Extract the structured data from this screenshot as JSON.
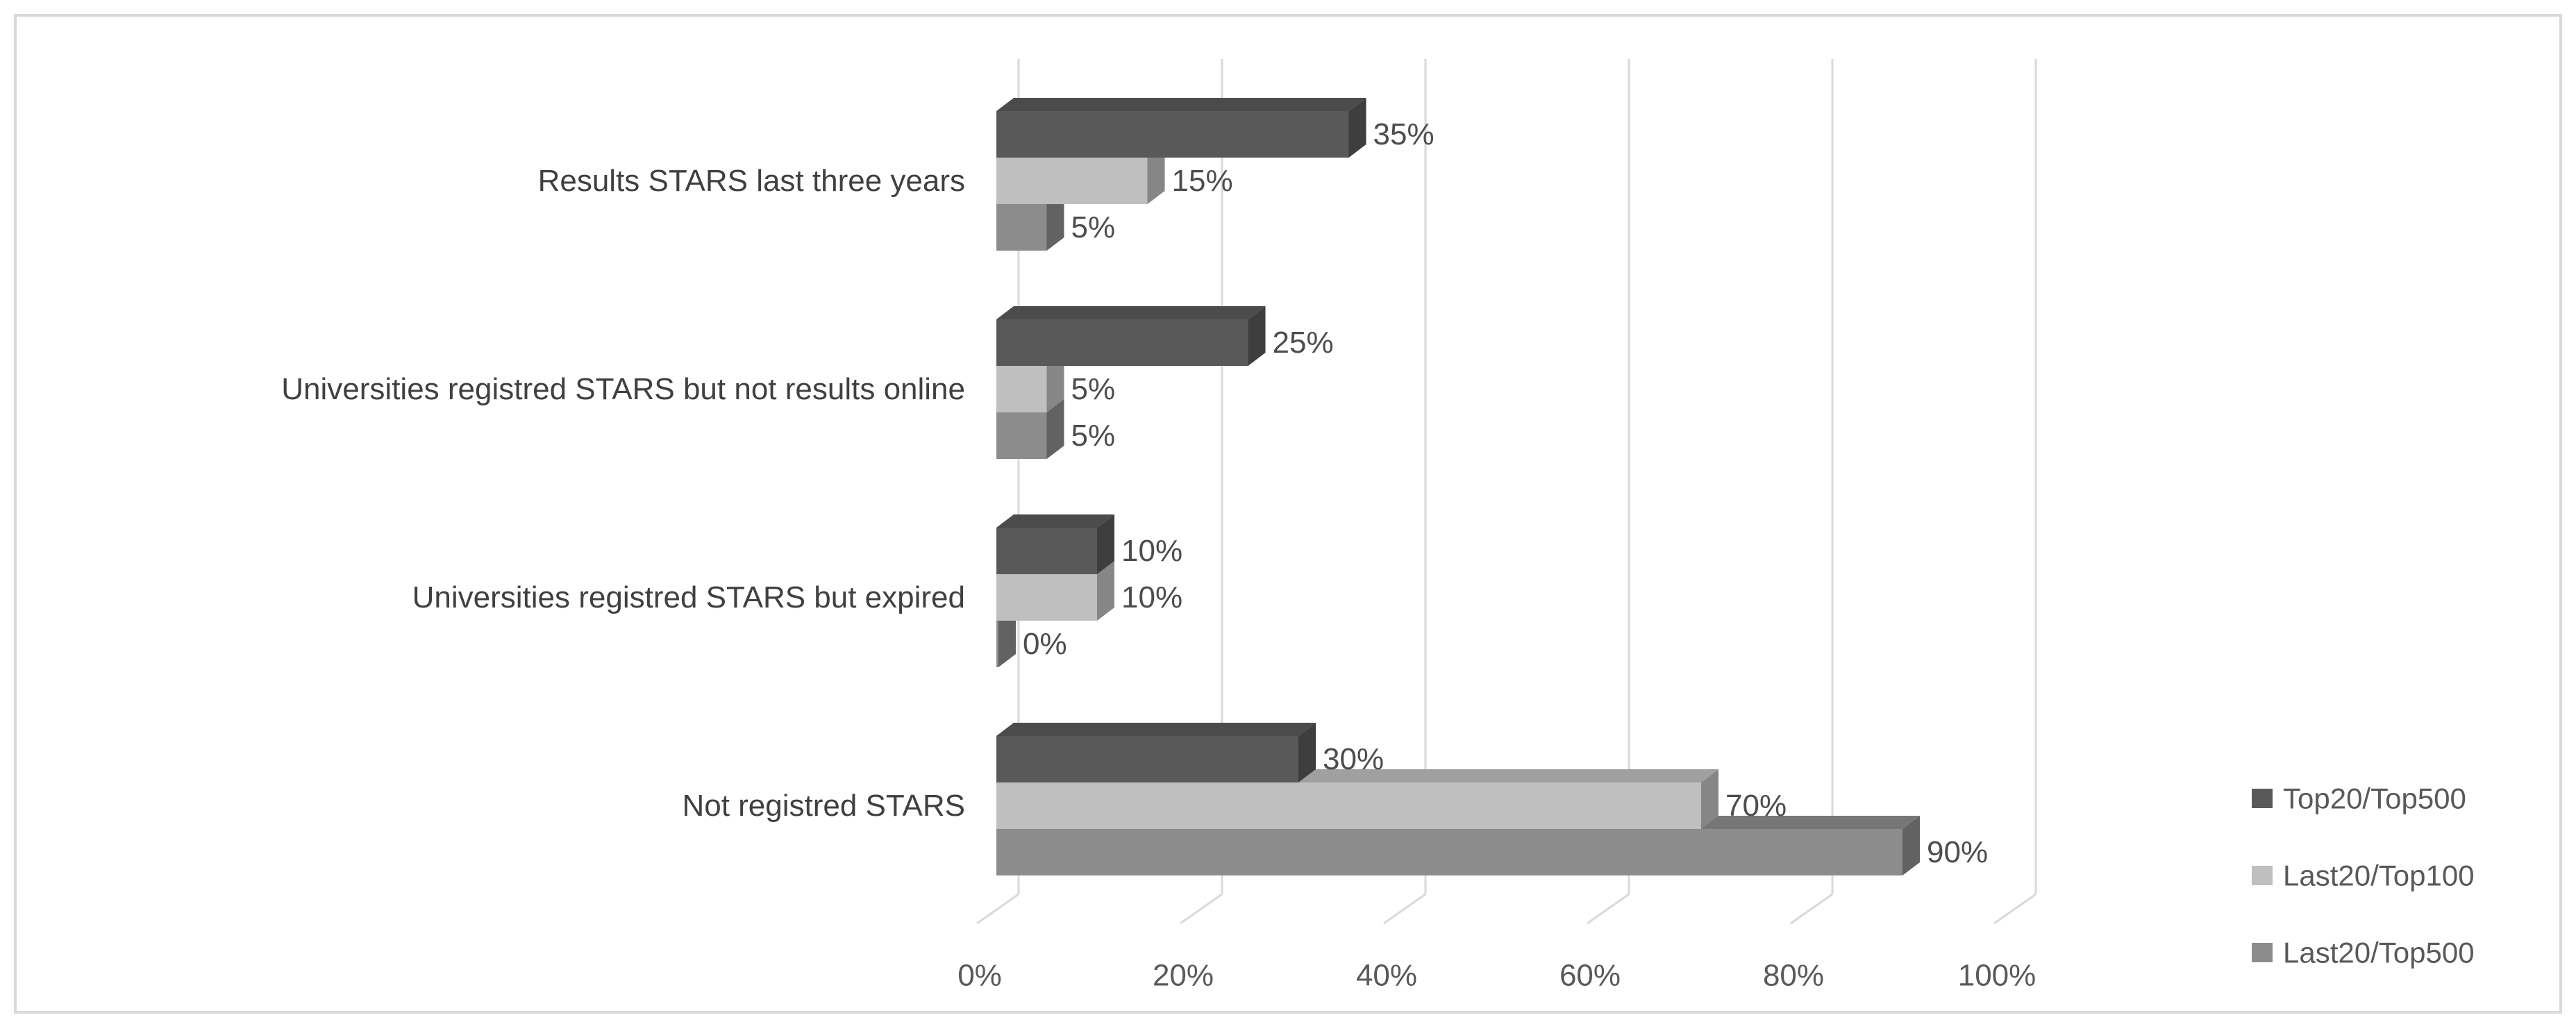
{
  "chart_data": {
    "type": "bar",
    "orientation": "horizontal",
    "style": "3d",
    "title": "",
    "xlabel": "",
    "ylabel": "",
    "categories": [
      "Results STARS last three years",
      "Universities registred STARS but not results online",
      "Universities registred STARS but expired",
      "Not registred STARS"
    ],
    "series": [
      {
        "name": "Top20/Top500",
        "color": "#595959",
        "values": [
          35,
          25,
          10,
          30
        ],
        "labels": [
          "35%",
          "25%",
          "10%",
          "30%"
        ]
      },
      {
        "name": "Last20/Top100",
        "color": "#bfbfbf",
        "values": [
          15,
          5,
          10,
          70
        ],
        "labels": [
          "15%",
          "5%",
          "10%",
          "70%"
        ]
      },
      {
        "name": "Last20/Top500",
        "color": "#8c8c8c",
        "values": [
          5,
          5,
          0,
          90
        ],
        "labels": [
          "5%",
          "5%",
          "0%",
          "90%"
        ]
      }
    ],
    "x_ticks": [
      "0%",
      "20%",
      "40%",
      "60%",
      "80%",
      "100%"
    ],
    "xlim": [
      0,
      100
    ],
    "grid": true,
    "legend_position": "right",
    "colors": {
      "background": "#ffffff",
      "border": "#d9d9d9",
      "gridline": "#d9d9d9",
      "axis_text": "#595959",
      "category_text": "#404040",
      "value_text": "#4d4d4d",
      "legend_text": "#595959"
    }
  }
}
